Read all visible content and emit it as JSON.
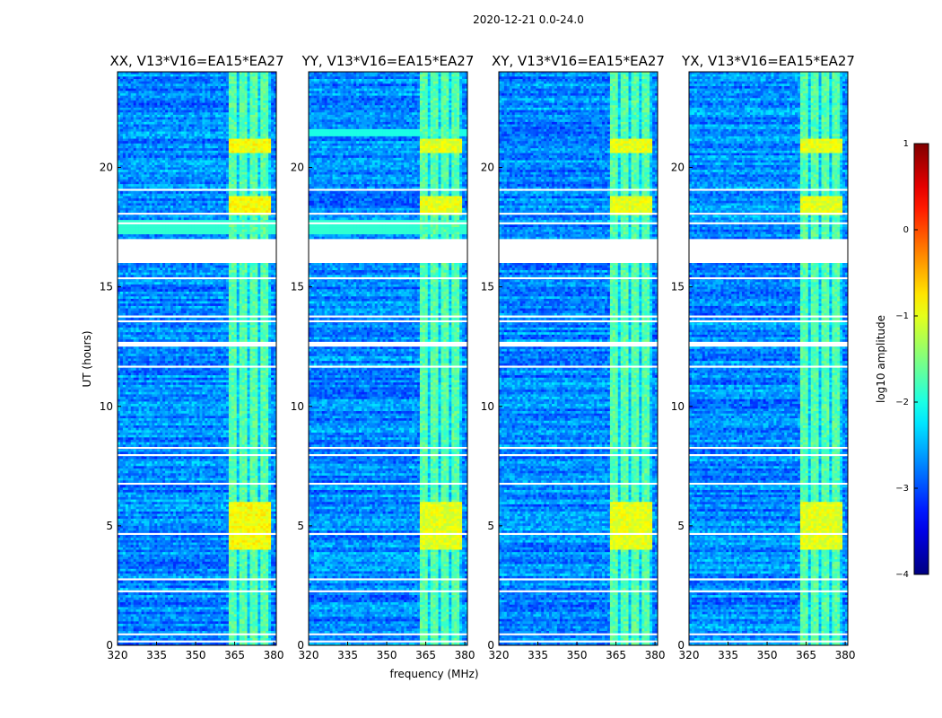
{
  "chart_data": {
    "type": "heatmap",
    "suptitle": "2020-12-21 0.0-24.0",
    "xlabel": "frequency (MHz)",
    "ylabel": "UT (hours)",
    "xlim": [
      320,
      381
    ],
    "ylim": [
      0,
      24
    ],
    "xticks": [
      "320",
      "335",
      "350",
      "365",
      "380"
    ],
    "xtick_values": [
      320,
      335,
      350,
      365,
      380
    ],
    "yticks": [
      "0",
      "5",
      "10",
      "15",
      "20"
    ],
    "ytick_values": [
      0,
      5,
      10,
      15,
      20
    ],
    "panels": [
      {
        "title": "XX, V13*V16=EA15*EA27"
      },
      {
        "title": "YY, V13*V16=EA15*EA27"
      },
      {
        "title": "XY, V13*V16=EA15*EA27"
      },
      {
        "title": "YX, V13*V16=EA15*EA27"
      }
    ],
    "colorbar": {
      "label": "log10 amplitude",
      "range": [
        -4,
        1
      ],
      "ticks": [
        "1",
        "0",
        "−1",
        "−2",
        "−3",
        "−4"
      ],
      "tick_values": [
        1,
        0,
        -1,
        -2,
        -3,
        -4
      ],
      "colormap": "jet"
    },
    "background_level": -2.7,
    "rfi_band_mhz": [
      363,
      379
    ],
    "rfi_level": -1.7,
    "rfi_strong_intervals_hours": [
      [
        4.0,
        6.0
      ],
      [
        18.0,
        18.8
      ],
      [
        20.6,
        21.2
      ]
    ],
    "rfi_strong_level": -1.0,
    "flagged_gaps_hours": [
      [
        17.0,
        16.0
      ],
      [
        12.7,
        12.5
      ]
    ],
    "grid": false
  }
}
